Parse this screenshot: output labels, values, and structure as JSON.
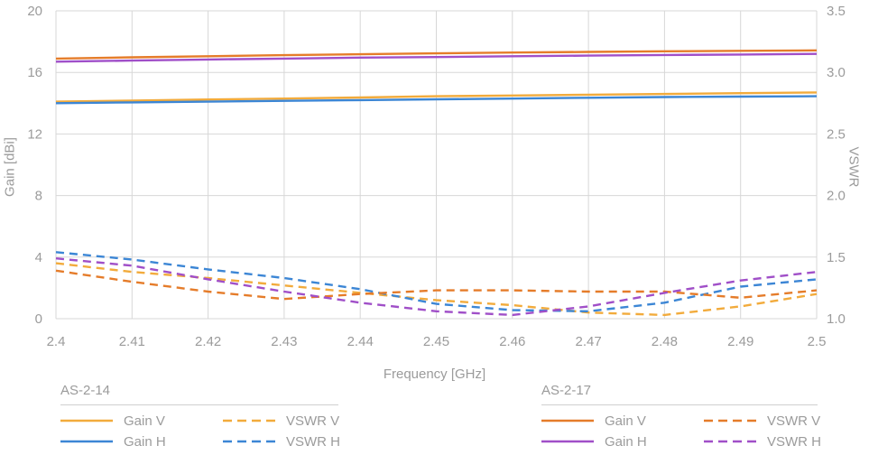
{
  "chart_data": {
    "type": "line",
    "title": "",
    "xlabel": "Frequency [GHz]",
    "ylabel_left": "Gain [dBi]",
    "ylabel_right": "VSWR",
    "grid": true,
    "legend_position": "bottom",
    "x_axis": {
      "min": 2.4,
      "max": 2.5,
      "ticks": [
        2.4,
        2.41,
        2.42,
        2.43,
        2.44,
        2.45,
        2.46,
        2.47,
        2.48,
        2.49,
        2.5
      ],
      "tick_labels": [
        "2.4",
        "2.41",
        "2.42",
        "2.43",
        "2.44",
        "2.45",
        "2.46",
        "2.47",
        "2.48",
        "2.49",
        "2.5"
      ]
    },
    "gain_axis": {
      "min": 0,
      "max": 20,
      "ticks": [
        0,
        4,
        8,
        12,
        16,
        20
      ],
      "tick_labels": [
        "0",
        "4",
        "8",
        "12",
        "16",
        "20"
      ]
    },
    "vswr_axis": {
      "min": 1.0,
      "max": 3.5,
      "ticks": [
        1.0,
        1.5,
        2.0,
        2.5,
        3.0,
        3.5
      ],
      "tick_labels": [
        "1.0",
        "1.5",
        "2.0",
        "2.5",
        "3.0",
        "3.5"
      ]
    },
    "x": [
      2.4,
      2.41,
      2.42,
      2.43,
      2.44,
      2.45,
      2.46,
      2.47,
      2.48,
      2.49,
      2.5
    ],
    "series": [
      {
        "group": "AS-2-14",
        "label": "Gain V",
        "axis": "gain",
        "style": "solid",
        "color": "#F2AB3C",
        "values": [
          14.1,
          14.17,
          14.24,
          14.3,
          14.37,
          14.45,
          14.5,
          14.55,
          14.6,
          14.65,
          14.7
        ]
      },
      {
        "group": "AS-2-14",
        "label": "Gain H",
        "axis": "gain",
        "style": "solid",
        "color": "#3C86D5",
        "values": [
          14.0,
          14.05,
          14.1,
          14.15,
          14.2,
          14.25,
          14.3,
          14.35,
          14.4,
          14.43,
          14.45
        ]
      },
      {
        "group": "AS-2-17",
        "label": "Gain V",
        "axis": "gain",
        "style": "solid",
        "color": "#E57C2A",
        "values": [
          16.9,
          16.98,
          17.05,
          17.12,
          17.18,
          17.24,
          17.29,
          17.33,
          17.37,
          17.4,
          17.43
        ]
      },
      {
        "group": "AS-2-17",
        "label": "Gain H",
        "axis": "gain",
        "style": "solid",
        "color": "#A04FC8",
        "values": [
          16.7,
          16.77,
          16.84,
          16.9,
          16.96,
          17.0,
          17.05,
          17.09,
          17.13,
          17.16,
          17.2
        ]
      },
      {
        "group": "AS-2-14",
        "label": "VSWR V",
        "axis": "vswr",
        "style": "dashed",
        "color": "#F2AB3C",
        "values": [
          1.45,
          1.38,
          1.33,
          1.27,
          1.21,
          1.15,
          1.11,
          1.05,
          1.03,
          1.1,
          1.2
        ]
      },
      {
        "group": "AS-2-14",
        "label": "VSWR H",
        "axis": "vswr",
        "style": "dashed",
        "color": "#3C86D5",
        "values": [
          1.54,
          1.48,
          1.4,
          1.33,
          1.24,
          1.12,
          1.07,
          1.06,
          1.13,
          1.26,
          1.32
        ]
      },
      {
        "group": "AS-2-17",
        "label": "VSWR V",
        "axis": "vswr",
        "style": "dashed",
        "color": "#E57C2A",
        "values": [
          1.39,
          1.3,
          1.22,
          1.16,
          1.2,
          1.23,
          1.23,
          1.22,
          1.22,
          1.17,
          1.23
        ]
      },
      {
        "group": "AS-2-17",
        "label": "VSWR H",
        "axis": "vswr",
        "style": "dashed",
        "color": "#A04FC8",
        "values": [
          1.49,
          1.43,
          1.32,
          1.22,
          1.13,
          1.06,
          1.03,
          1.1,
          1.21,
          1.31,
          1.38
        ]
      }
    ]
  },
  "legend": {
    "groups": [
      {
        "title": "AS-2-14",
        "entries": [
          {
            "label": "Gain V",
            "color": "#F2AB3C",
            "style": "solid"
          },
          {
            "label": "VSWR V",
            "color": "#F2AB3C",
            "style": "dashed"
          },
          {
            "label": "Gain H",
            "color": "#3C86D5",
            "style": "solid"
          },
          {
            "label": "VSWR H",
            "color": "#3C86D5",
            "style": "dashed"
          }
        ]
      },
      {
        "title": "AS-2-17",
        "entries": [
          {
            "label": "Gain V",
            "color": "#E57C2A",
            "style": "solid"
          },
          {
            "label": "VSWR V",
            "color": "#E57C2A",
            "style": "dashed"
          },
          {
            "label": "Gain H",
            "color": "#A04FC8",
            "style": "solid"
          },
          {
            "label": "VSWR H",
            "color": "#A04FC8",
            "style": "dashed"
          }
        ]
      }
    ]
  },
  "colors": {
    "grid": "#d7d7d7",
    "text": "#9b9b9b",
    "rule": "#cfcfcf",
    "background": "#ffffff"
  }
}
